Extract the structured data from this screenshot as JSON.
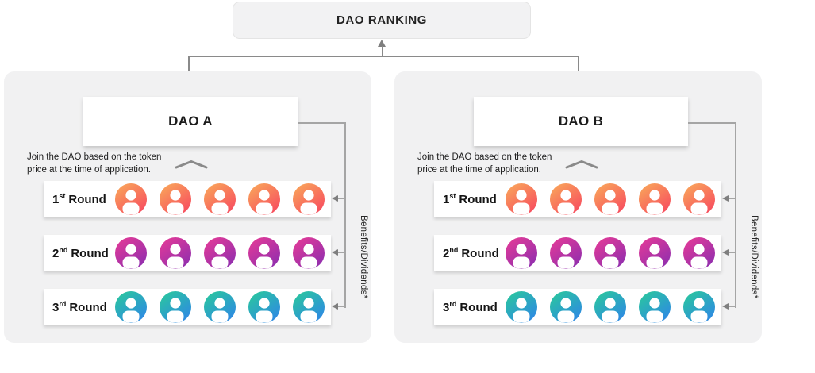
{
  "header": {
    "title": "DAO RANKING"
  },
  "icons": {
    "person": "person-icon",
    "chevron_up": "chevron-up-icon",
    "arrow_up": "arrow-up-icon",
    "arrow_left": "arrow-left-icon"
  },
  "colors": {
    "panel_bg": "#F1F1F2",
    "ranking_box_bg": "#F2F2F3",
    "connector_line": "#A5A5A5",
    "arrowhead": "#7F7F7F",
    "text": "#1E1E1E",
    "round1_gradient_start": "#F9A35A",
    "round1_gradient_end": "#F74A5F",
    "round2_gradient_start": "#E13A98",
    "round2_gradient_end": "#8E2EAF",
    "round3_gradient_start": "#2AC5A0",
    "round3_gradient_end": "#2E87E6"
  },
  "panels": [
    {
      "name": "DAO A",
      "note_line1": "Join the DAO based on the token",
      "note_line2": "price at the time of application.",
      "benefits_label": "Benefits/Dividends*",
      "rounds": [
        {
          "ordinal": "1",
          "suffix": "st",
          "word": "Round",
          "members": 5,
          "gradient_start": "#F9A35A",
          "gradient_end": "#F74A5F"
        },
        {
          "ordinal": "2",
          "suffix": "nd",
          "word": "Round",
          "members": 5,
          "gradient_start": "#E13A98",
          "gradient_end": "#8E2EAF"
        },
        {
          "ordinal": "3",
          "suffix": "rd",
          "word": "Round",
          "members": 5,
          "gradient_start": "#2AC5A0",
          "gradient_end": "#2E87E6"
        }
      ]
    },
    {
      "name": "DAO B",
      "note_line1": "Join the DAO based on the token",
      "note_line2": "price at the time of application.",
      "benefits_label": "Benefits/Dividends*",
      "rounds": [
        {
          "ordinal": "1",
          "suffix": "st",
          "word": "Round",
          "members": 5,
          "gradient_start": "#F9A35A",
          "gradient_end": "#F74A5F"
        },
        {
          "ordinal": "2",
          "suffix": "nd",
          "word": "Round",
          "members": 5,
          "gradient_start": "#E13A98",
          "gradient_end": "#8E2EAF"
        },
        {
          "ordinal": "3",
          "suffix": "rd",
          "word": "Round",
          "members": 5,
          "gradient_start": "#2AC5A0",
          "gradient_end": "#2E87E6"
        }
      ]
    }
  ]
}
